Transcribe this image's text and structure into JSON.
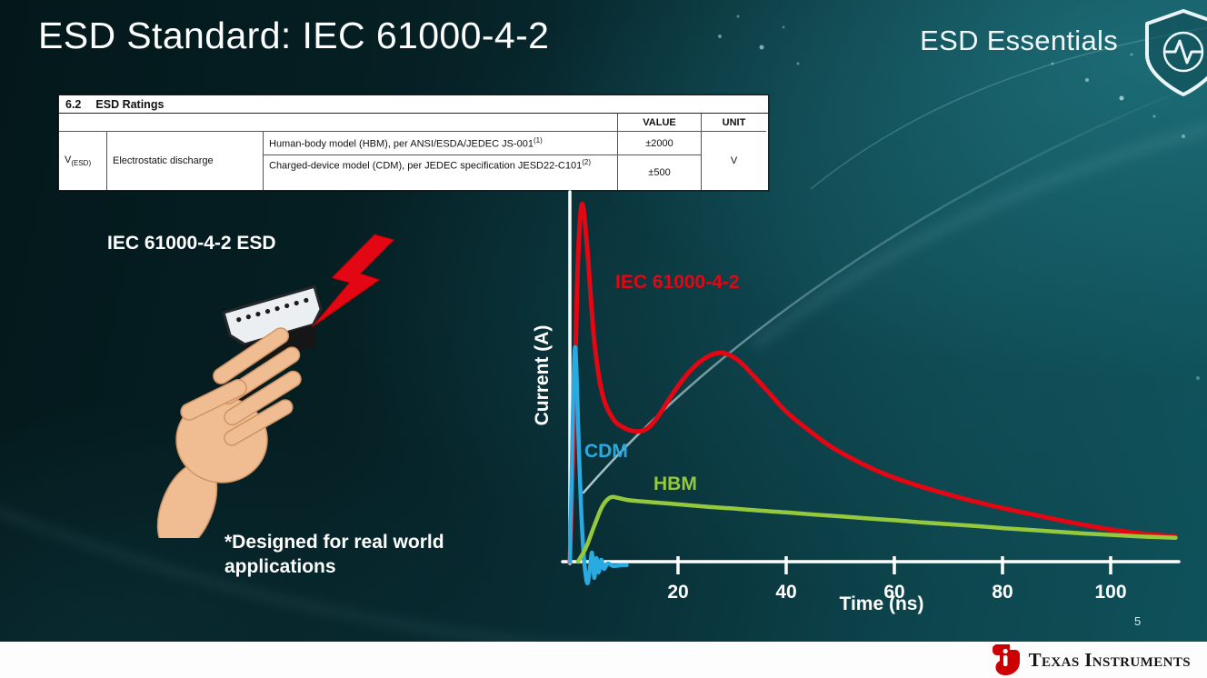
{
  "slide": {
    "title": "ESD Standard: IEC 61000-4-2",
    "brand_badge": "ESD Essentials",
    "page_number": "5"
  },
  "datasheet_table": {
    "section_number": "6.2",
    "section_title": "ESD Ratings",
    "value_header": "VALUE",
    "unit_header": "UNIT",
    "symbol_main": "V",
    "symbol_sub": "(ESD)",
    "parameter": "Electrostatic discharge",
    "rows": [
      {
        "desc": "Human-body model (HBM), per ANSI/ESDA/JEDEC JS-001",
        "sup": "(1)",
        "value": "±2000"
      },
      {
        "desc": "Charged-device model (CDM), per JEDEC specification JESD22-C101",
        "sup": "(2)",
        "value": "±500"
      }
    ],
    "unit": "V"
  },
  "illustration": {
    "caption": "IEC 61000-4-2 ESD",
    "note": "*Designed for real world applications"
  },
  "chart_data": {
    "type": "line",
    "title": "",
    "xlabel": "Time (ns)",
    "ylabel": "Current (A)",
    "x_ticks": [
      20,
      40,
      60,
      80,
      100
    ],
    "xlim": [
      0,
      113
    ],
    "ylim": [
      0,
      1.05
    ],
    "grid": false,
    "axis_color": "#ffffff",
    "legend_position": "inline-labels",
    "series": [
      {
        "name": "IEC 61000-4-2",
        "color": "#e30613",
        "width": 5,
        "points": [
          [
            0,
            0
          ],
          [
            0.7,
            0.35
          ],
          [
            1.4,
            0.8
          ],
          [
            2.2,
            1.0
          ],
          [
            3.2,
            0.88
          ],
          [
            4.5,
            0.62
          ],
          [
            6,
            0.47
          ],
          [
            8,
            0.4
          ],
          [
            10,
            0.375
          ],
          [
            12,
            0.365
          ],
          [
            14,
            0.37
          ],
          [
            16,
            0.4
          ],
          [
            19,
            0.47
          ],
          [
            22,
            0.53
          ],
          [
            25,
            0.57
          ],
          [
            28,
            0.585
          ],
          [
            31,
            0.565
          ],
          [
            34,
            0.52
          ],
          [
            37,
            0.47
          ],
          [
            40,
            0.42
          ],
          [
            44,
            0.37
          ],
          [
            48,
            0.325
          ],
          [
            52,
            0.29
          ],
          [
            56,
            0.26
          ],
          [
            60,
            0.235
          ],
          [
            65,
            0.21
          ],
          [
            70,
            0.188
          ],
          [
            75,
            0.168
          ],
          [
            80,
            0.15
          ],
          [
            85,
            0.134
          ],
          [
            90,
            0.118
          ],
          [
            95,
            0.103
          ],
          [
            100,
            0.09
          ],
          [
            105,
            0.08
          ],
          [
            110,
            0.073
          ],
          [
            112,
            0.07
          ]
        ]
      },
      {
        "name": "CDM",
        "color": "#29abe2",
        "width": 4.5,
        "points": [
          [
            0,
            0
          ],
          [
            0.3,
            0.22
          ],
          [
            0.7,
            0.52
          ],
          [
            1.0,
            0.6
          ],
          [
            1.3,
            0.5
          ],
          [
            1.7,
            0.3
          ],
          [
            2.1,
            0.14
          ],
          [
            2.5,
            0.03
          ],
          [
            2.9,
            -0.035
          ],
          [
            3.3,
            -0.06
          ],
          [
            3.7,
            -0.02
          ],
          [
            4.1,
            0.025
          ],
          [
            4.5,
            -0.045
          ],
          [
            4.9,
            0.01
          ],
          [
            5.3,
            -0.03
          ],
          [
            5.8,
            0.005
          ],
          [
            6.3,
            -0.02
          ],
          [
            7,
            -0.005
          ],
          [
            8,
            -0.012
          ],
          [
            9.5,
            -0.01
          ],
          [
            10.5,
            -0.01
          ]
        ]
      },
      {
        "name": "HBM",
        "color": "#95c93d",
        "width": 4.5,
        "points": [
          [
            1.5,
            0
          ],
          [
            3,
            0.04
          ],
          [
            4.5,
            0.1
          ],
          [
            6,
            0.155
          ],
          [
            7.5,
            0.18
          ],
          [
            9,
            0.178
          ],
          [
            11,
            0.172
          ],
          [
            14,
            0.168
          ],
          [
            18,
            0.163
          ],
          [
            22,
            0.158
          ],
          [
            26,
            0.153
          ],
          [
            30,
            0.149
          ],
          [
            35,
            0.143
          ],
          [
            40,
            0.138
          ],
          [
            45,
            0.132
          ],
          [
            50,
            0.127
          ],
          [
            55,
            0.121
          ],
          [
            60,
            0.116
          ],
          [
            65,
            0.11
          ],
          [
            70,
            0.105
          ],
          [
            75,
            0.1
          ],
          [
            80,
            0.094
          ],
          [
            85,
            0.089
          ],
          [
            90,
            0.084
          ],
          [
            95,
            0.079
          ],
          [
            100,
            0.075
          ],
          [
            105,
            0.071
          ],
          [
            110,
            0.068
          ],
          [
            112,
            0.067
          ]
        ]
      }
    ]
  },
  "footer": {
    "brand": "Texas Instruments"
  },
  "icons": {
    "shield": "shield-pulse-icon",
    "lightning": "lightning-bolt-icon",
    "logo": "ti-logo-icon"
  },
  "colors": {
    "background_dark": "#04181b",
    "background_teal": "#0f525b",
    "accent_red": "#e30613",
    "accent_blue": "#29abe2",
    "accent_green": "#95c93d",
    "ti_red": "#cc0000"
  }
}
